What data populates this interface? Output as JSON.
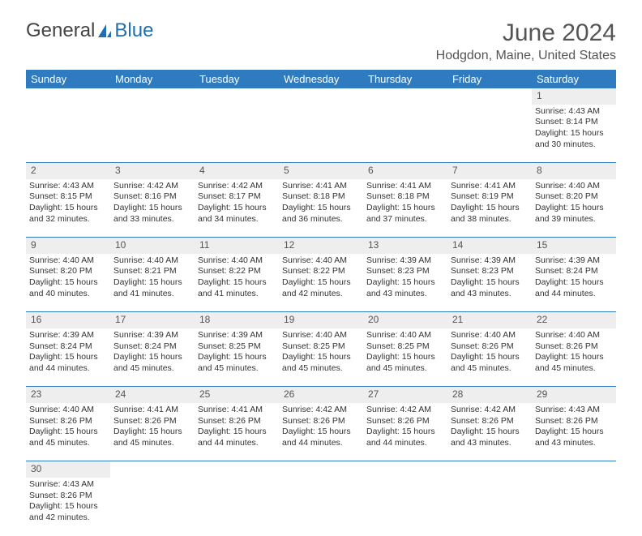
{
  "logo": {
    "text1": "General",
    "text2": "Blue"
  },
  "title": "June 2024",
  "location": "Hodgdon, Maine, United States",
  "colors": {
    "header_bg": "#2f7bbf",
    "header_text": "#ffffff",
    "daynum_bg": "#eeeeee",
    "border": "#2f7bbf",
    "logo_gray": "#444444",
    "logo_blue": "#1f6fb2"
  },
  "day_headers": [
    "Sunday",
    "Monday",
    "Tuesday",
    "Wednesday",
    "Thursday",
    "Friday",
    "Saturday"
  ],
  "weeks": [
    {
      "nums": [
        "",
        "",
        "",
        "",
        "",
        "",
        "1"
      ],
      "cells": [
        null,
        null,
        null,
        null,
        null,
        null,
        {
          "sunrise": "4:43 AM",
          "sunset": "8:14 PM",
          "daylight": "15 hours and 30 minutes."
        }
      ]
    },
    {
      "nums": [
        "2",
        "3",
        "4",
        "5",
        "6",
        "7",
        "8"
      ],
      "cells": [
        {
          "sunrise": "4:43 AM",
          "sunset": "8:15 PM",
          "daylight": "15 hours and 32 minutes."
        },
        {
          "sunrise": "4:42 AM",
          "sunset": "8:16 PM",
          "daylight": "15 hours and 33 minutes."
        },
        {
          "sunrise": "4:42 AM",
          "sunset": "8:17 PM",
          "daylight": "15 hours and 34 minutes."
        },
        {
          "sunrise": "4:41 AM",
          "sunset": "8:18 PM",
          "daylight": "15 hours and 36 minutes."
        },
        {
          "sunrise": "4:41 AM",
          "sunset": "8:18 PM",
          "daylight": "15 hours and 37 minutes."
        },
        {
          "sunrise": "4:41 AM",
          "sunset": "8:19 PM",
          "daylight": "15 hours and 38 minutes."
        },
        {
          "sunrise": "4:40 AM",
          "sunset": "8:20 PM",
          "daylight": "15 hours and 39 minutes."
        }
      ]
    },
    {
      "nums": [
        "9",
        "10",
        "11",
        "12",
        "13",
        "14",
        "15"
      ],
      "cells": [
        {
          "sunrise": "4:40 AM",
          "sunset": "8:20 PM",
          "daylight": "15 hours and 40 minutes."
        },
        {
          "sunrise": "4:40 AM",
          "sunset": "8:21 PM",
          "daylight": "15 hours and 41 minutes."
        },
        {
          "sunrise": "4:40 AM",
          "sunset": "8:22 PM",
          "daylight": "15 hours and 41 minutes."
        },
        {
          "sunrise": "4:40 AM",
          "sunset": "8:22 PM",
          "daylight": "15 hours and 42 minutes."
        },
        {
          "sunrise": "4:39 AM",
          "sunset": "8:23 PM",
          "daylight": "15 hours and 43 minutes."
        },
        {
          "sunrise": "4:39 AM",
          "sunset": "8:23 PM",
          "daylight": "15 hours and 43 minutes."
        },
        {
          "sunrise": "4:39 AM",
          "sunset": "8:24 PM",
          "daylight": "15 hours and 44 minutes."
        }
      ]
    },
    {
      "nums": [
        "16",
        "17",
        "18",
        "19",
        "20",
        "21",
        "22"
      ],
      "cells": [
        {
          "sunrise": "4:39 AM",
          "sunset": "8:24 PM",
          "daylight": "15 hours and 44 minutes."
        },
        {
          "sunrise": "4:39 AM",
          "sunset": "8:24 PM",
          "daylight": "15 hours and 45 minutes."
        },
        {
          "sunrise": "4:39 AM",
          "sunset": "8:25 PM",
          "daylight": "15 hours and 45 minutes."
        },
        {
          "sunrise": "4:40 AM",
          "sunset": "8:25 PM",
          "daylight": "15 hours and 45 minutes."
        },
        {
          "sunrise": "4:40 AM",
          "sunset": "8:25 PM",
          "daylight": "15 hours and 45 minutes."
        },
        {
          "sunrise": "4:40 AM",
          "sunset": "8:26 PM",
          "daylight": "15 hours and 45 minutes."
        },
        {
          "sunrise": "4:40 AM",
          "sunset": "8:26 PM",
          "daylight": "15 hours and 45 minutes."
        }
      ]
    },
    {
      "nums": [
        "23",
        "24",
        "25",
        "26",
        "27",
        "28",
        "29"
      ],
      "cells": [
        {
          "sunrise": "4:40 AM",
          "sunset": "8:26 PM",
          "daylight": "15 hours and 45 minutes."
        },
        {
          "sunrise": "4:41 AM",
          "sunset": "8:26 PM",
          "daylight": "15 hours and 45 minutes."
        },
        {
          "sunrise": "4:41 AM",
          "sunset": "8:26 PM",
          "daylight": "15 hours and 44 minutes."
        },
        {
          "sunrise": "4:42 AM",
          "sunset": "8:26 PM",
          "daylight": "15 hours and 44 minutes."
        },
        {
          "sunrise": "4:42 AM",
          "sunset": "8:26 PM",
          "daylight": "15 hours and 44 minutes."
        },
        {
          "sunrise": "4:42 AM",
          "sunset": "8:26 PM",
          "daylight": "15 hours and 43 minutes."
        },
        {
          "sunrise": "4:43 AM",
          "sunset": "8:26 PM",
          "daylight": "15 hours and 43 minutes."
        }
      ]
    },
    {
      "nums": [
        "30",
        "",
        "",
        "",
        "",
        "",
        ""
      ],
      "cells": [
        {
          "sunrise": "4:43 AM",
          "sunset": "8:26 PM",
          "daylight": "15 hours and 42 minutes."
        },
        null,
        null,
        null,
        null,
        null,
        null
      ]
    }
  ],
  "labels": {
    "sunrise": "Sunrise:",
    "sunset": "Sunset:",
    "daylight": "Daylight:"
  }
}
